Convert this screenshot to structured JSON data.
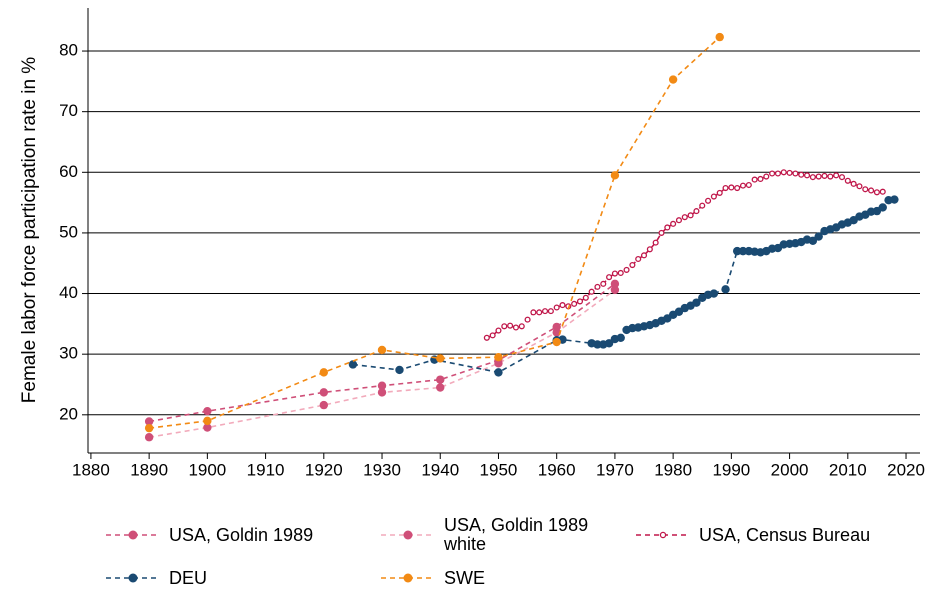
{
  "chart_data": {
    "type": "line",
    "y_label": "Female labor force participation rate in %",
    "xlim": [
      1879.5,
      2022.4
    ],
    "ylim": [
      13.7,
      87.1
    ],
    "xticks": [
      1880,
      1890,
      1900,
      1910,
      1920,
      1930,
      1940,
      1950,
      1960,
      1970,
      1980,
      1990,
      2000,
      2010,
      2020
    ],
    "yticks": [
      20,
      30,
      40,
      50,
      60,
      70,
      80
    ],
    "grid": true,
    "series": [
      {
        "name": "USA, Goldin 1989",
        "color": "#cf4f78",
        "marker": "filled",
        "x": [
          1890,
          1900,
          1920,
          1930,
          1940,
          1950,
          1960,
          1970
        ],
        "values": [
          18.9,
          20.6,
          23.7,
          24.8,
          25.8,
          29.0,
          34.5,
          41.6
        ]
      },
      {
        "name": "USA, Goldin 1989 white",
        "color": "#f2aabb",
        "marker_color": "#cf4f78",
        "marker": "filled",
        "x": [
          1890,
          1900,
          1920,
          1930,
          1940,
          1950,
          1960,
          1970
        ],
        "values": [
          16.3,
          17.9,
          21.6,
          23.7,
          24.5,
          28.5,
          33.6,
          40.6
        ]
      },
      {
        "name": "USA, Census Bureau",
        "color": "#c0174a",
        "marker": "hollow",
        "x": [
          1948,
          1949,
          1950,
          1951,
          1952,
          1953,
          1954,
          1955,
          1956,
          1957,
          1958,
          1959,
          1960,
          1961,
          1962,
          1963,
          1964,
          1965,
          1966,
          1967,
          1968,
          1969,
          1970,
          1971,
          1972,
          1973,
          1974,
          1975,
          1976,
          1977,
          1978,
          1979,
          1980,
          1981,
          1982,
          1983,
          1984,
          1985,
          1986,
          1987,
          1988,
          1989,
          1990,
          1991,
          1992,
          1993,
          1994,
          1995,
          1996,
          1997,
          1998,
          1999,
          2000,
          2001,
          2002,
          2003,
          2004,
          2005,
          2006,
          2007,
          2008,
          2009,
          2010,
          2011,
          2012,
          2013,
          2014,
          2015,
          2016
        ],
        "values": [
          32.7,
          33.1,
          33.9,
          34.6,
          34.7,
          34.4,
          34.6,
          35.7,
          36.9,
          36.9,
          37.1,
          37.1,
          37.7,
          38.1,
          37.9,
          38.3,
          38.7,
          39.3,
          40.3,
          41.1,
          41.6,
          42.7,
          43.3,
          43.4,
          43.9,
          44.7,
          45.7,
          46.3,
          47.3,
          48.4,
          50.0,
          50.9,
          51.5,
          52.1,
          52.6,
          52.9,
          53.6,
          54.5,
          55.3,
          56.0,
          56.6,
          57.4,
          57.5,
          57.4,
          57.8,
          57.9,
          58.8,
          58.9,
          59.3,
          59.8,
          59.8,
          60.0,
          59.9,
          59.8,
          59.6,
          59.5,
          59.2,
          59.3,
          59.4,
          59.3,
          59.5,
          59.2,
          58.6,
          58.1,
          57.7,
          57.2,
          57.0,
          56.7,
          56.8
        ]
      },
      {
        "name": "DEU",
        "color": "#1a4a72",
        "marker": "filled",
        "x": [
          1925,
          1933,
          1939,
          1950,
          1960,
          1961,
          1966,
          1967,
          1968,
          1969,
          1970,
          1971,
          1972,
          1973,
          1974,
          1975,
          1976,
          1977,
          1978,
          1979,
          1980,
          1981,
          1982,
          1983,
          1984,
          1985,
          1986,
          1987,
          1989,
          1991,
          1992,
          1993,
          1994,
          1995,
          1996,
          1997,
          1998,
          1999,
          2000,
          2001,
          2002,
          2003,
          2004,
          2005,
          2006,
          2007,
          2008,
          2009,
          2010,
          2011,
          2012,
          2013,
          2014,
          2015,
          2016,
          2017,
          2018
        ],
        "values": [
          28.3,
          27.4,
          29.1,
          27.0,
          32.3,
          32.4,
          31.8,
          31.6,
          31.6,
          31.8,
          32.5,
          32.7,
          34.0,
          34.3,
          34.4,
          34.6,
          34.8,
          35.1,
          35.5,
          35.9,
          36.5,
          37.0,
          37.6,
          38.0,
          38.5,
          39.3,
          39.8,
          40.0,
          40.7,
          47.0,
          47.0,
          47.0,
          46.9,
          46.8,
          47.0,
          47.4,
          47.5,
          48.1,
          48.2,
          48.3,
          48.5,
          48.9,
          48.7,
          49.4,
          50.3,
          50.6,
          50.9,
          51.4,
          51.7,
          52.1,
          52.7,
          53.0,
          53.5,
          53.6,
          54.2,
          55.4,
          55.5
        ]
      },
      {
        "name": "SWE",
        "color": "#f28a14",
        "marker": "filled",
        "x": [
          1890,
          1900,
          1920,
          1930,
          1940,
          1950,
          1960,
          1970,
          1980,
          1988
        ],
        "values": [
          17.8,
          19.0,
          27.0,
          30.7,
          29.3,
          29.5,
          32.0,
          59.5,
          75.3,
          82.3
        ]
      }
    ]
  }
}
